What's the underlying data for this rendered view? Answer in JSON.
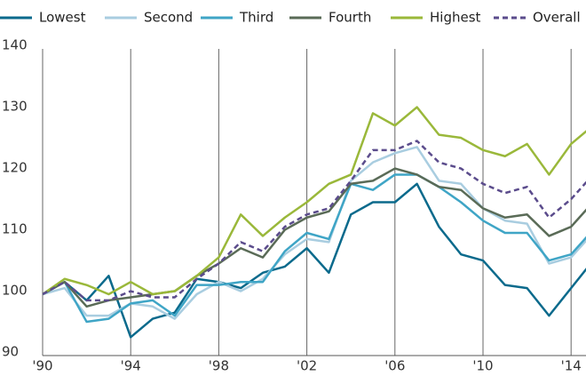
{
  "chart_data": {
    "type": "line",
    "x": [
      1990,
      1991,
      1992,
      1993,
      1994,
      1995,
      1996,
      1997,
      1998,
      1999,
      2000,
      2001,
      2002,
      2003,
      2004,
      2005,
      2006,
      2007,
      2008,
      2009,
      2010,
      2011,
      2012,
      2013,
      2014,
      2015
    ],
    "xlim": [
      1990,
      2015
    ],
    "xticks": [
      {
        "value": 1990,
        "label": "'90"
      },
      {
        "value": 1994,
        "label": "'94"
      },
      {
        "value": 1998,
        "label": "'98"
      },
      {
        "value": 2002,
        "label": "'02"
      },
      {
        "value": 2006,
        "label": "'06"
      },
      {
        "value": 2010,
        "label": "'10"
      },
      {
        "value": 2014,
        "label": "'14"
      }
    ],
    "ylim": [
      90,
      140
    ],
    "yticks": [
      90,
      100,
      110,
      120,
      130,
      140
    ],
    "grid": "x",
    "legend": "top",
    "series": [
      {
        "name": "Lowest",
        "color": "#0b6a8c",
        "dashed": false,
        "values": [
          100,
          102,
          99,
          103,
          93,
          96,
          97,
          102.5,
          102,
          101,
          103.5,
          104.5,
          107.5,
          103.5,
          113,
          115,
          115,
          118,
          111,
          106.5,
          105.5,
          101.5,
          101,
          96.5,
          101,
          105.5
        ]
      },
      {
        "name": "Second",
        "color": "#a9cde0",
        "dashed": false,
        "values": [
          100,
          101,
          96.5,
          96.5,
          98.5,
          98,
          96,
          100,
          102,
          100.5,
          102.5,
          106.5,
          109,
          108.5,
          118.5,
          121.5,
          123,
          124,
          118.5,
          118,
          114,
          112,
          111.5,
          105,
          106,
          110
        ]
      },
      {
        "name": "Third",
        "color": "#3fa5c6",
        "dashed": false,
        "values": [
          100,
          102,
          95.5,
          96,
          98.5,
          99,
          96.5,
          101.5,
          101.5,
          102,
          102,
          107,
          110,
          109,
          118,
          117,
          119.5,
          119.5,
          117.5,
          115,
          112,
          110,
          110,
          105.5,
          106.5,
          110.5
        ]
      },
      {
        "name": "Fourth",
        "color": "#5a6b57",
        "dashed": false,
        "values": [
          100,
          102,
          98,
          99,
          99.5,
          100,
          100.5,
          103,
          105,
          107.5,
          106,
          110.5,
          112.5,
          113.5,
          118,
          118.5,
          120.5,
          119.5,
          117.5,
          117,
          114,
          112.5,
          113,
          109.5,
          111,
          115
        ]
      },
      {
        "name": "Highest",
        "color": "#9ab83a",
        "dashed": false,
        "values": [
          100,
          102.5,
          101.5,
          100,
          102,
          100,
          100.5,
          103,
          106,
          113,
          109.5,
          112.5,
          115,
          118,
          119.5,
          129.5,
          127.5,
          130.5,
          126,
          125.5,
          123.5,
          122.5,
          124.5,
          119.5,
          124.5,
          127.5
        ]
      },
      {
        "name": "Overall",
        "color": "#5b4c8c",
        "dashed": true,
        "values": [
          100,
          102,
          99,
          99,
          100.5,
          99.5,
          99.5,
          102.5,
          105,
          108.5,
          107,
          111,
          113,
          114,
          118.5,
          123.5,
          123.5,
          125,
          121.5,
          120.5,
          118,
          116.5,
          117.5,
          112.5,
          115.5,
          119.5
        ]
      }
    ]
  }
}
